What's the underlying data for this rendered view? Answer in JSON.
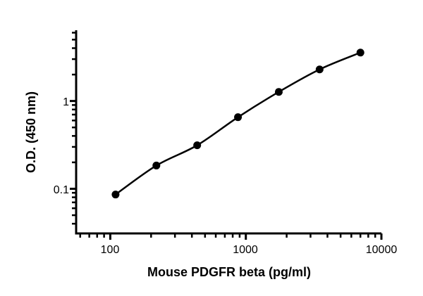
{
  "chart_data": {
    "type": "scatter",
    "title": "",
    "xlabel": "Mouse PDGFR beta (pg/ml)",
    "ylabel": "O.D. (450 nm)",
    "xscale": "log",
    "yscale": "log",
    "xlim": [
      56,
      10000
    ],
    "ylim": [
      0.031,
      6.4
    ],
    "xticks": [
      100,
      1000,
      10000
    ],
    "xtick_labels": [
      "100",
      "1000",
      "10000"
    ],
    "yticks": [
      0.1,
      1
    ],
    "ytick_labels": [
      "0.1",
      "1"
    ],
    "grid": false,
    "series": [
      {
        "x": [
          109.4,
          218.8,
          437.5,
          875,
          1750,
          3500,
          7000
        ],
        "y": [
          0.086,
          0.184,
          0.313,
          0.654,
          1.27,
          2.29,
          3.56
        ],
        "marker": "circle",
        "fit_line": true,
        "color": "#000000"
      }
    ]
  }
}
